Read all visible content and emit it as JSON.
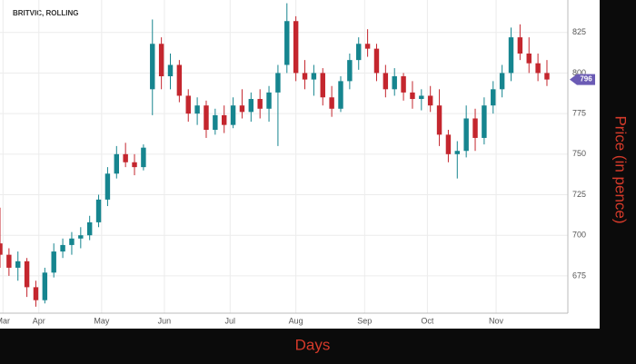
{
  "chart_data": {
    "type": "candlestick",
    "title": "BRITVIC, ROLLING",
    "x_label": "Days",
    "y_label": "Price (in pence)",
    "x": [
      0,
      3,
      6,
      9,
      12,
      15,
      18,
      21,
      24,
      27,
      30,
      33,
      36,
      39,
      42,
      45,
      48,
      51,
      54,
      57,
      60,
      63,
      66,
      69,
      72,
      75,
      78,
      81,
      84,
      87,
      90,
      93,
      96,
      99,
      102,
      105,
      108,
      111,
      114,
      117,
      120,
      123,
      126,
      129,
      132,
      135,
      138,
      141,
      144,
      147,
      150,
      153,
      156,
      159,
      162,
      165,
      168,
      171,
      174,
      177,
      180,
      183
    ],
    "open": [
      695,
      688,
      680,
      684,
      668,
      660,
      677,
      690,
      694,
      698,
      700,
      708,
      722,
      738,
      750,
      745,
      742,
      790,
      818,
      798,
      805,
      786,
      775,
      780,
      765,
      774,
      768,
      780,
      776,
      784,
      778,
      788,
      805,
      832,
      800,
      796,
      800,
      785,
      778,
      795,
      808,
      818,
      815,
      800,
      790,
      798,
      788,
      784,
      786,
      780,
      762,
      750,
      752,
      772,
      760,
      780,
      790,
      800,
      822,
      812,
      806,
      800
    ],
    "high": [
      717,
      692,
      690,
      686,
      672,
      680,
      695,
      698,
      702,
      705,
      712,
      725,
      742,
      755,
      757,
      750,
      756,
      833,
      822,
      812,
      808,
      790,
      785,
      783,
      778,
      780,
      785,
      790,
      788,
      790,
      792,
      805,
      843,
      835,
      808,
      805,
      803,
      792,
      798,
      812,
      822,
      827,
      818,
      805,
      803,
      800,
      795,
      790,
      792,
      790,
      765,
      758,
      780,
      778,
      785,
      795,
      805,
      828,
      830,
      822,
      812,
      808
    ],
    "low": [
      680,
      675,
      672,
      662,
      656,
      658,
      674,
      686,
      688,
      692,
      697,
      705,
      718,
      735,
      742,
      737,
      740,
      774,
      790,
      790,
      782,
      770,
      768,
      760,
      762,
      763,
      766,
      772,
      770,
      772,
      770,
      755,
      800,
      795,
      790,
      786,
      780,
      773,
      776,
      790,
      802,
      810,
      795,
      785,
      786,
      783,
      778,
      777,
      776,
      755,
      745,
      735,
      748,
      752,
      756,
      775,
      785,
      795,
      808,
      800,
      795,
      792
    ],
    "close": [
      688,
      680,
      684,
      668,
      660,
      677,
      690,
      694,
      698,
      700,
      708,
      722,
      738,
      750,
      745,
      742,
      754,
      818,
      798,
      805,
      786,
      775,
      780,
      765,
      774,
      768,
      780,
      776,
      784,
      778,
      788,
      800,
      832,
      800,
      796,
      800,
      785,
      778,
      795,
      808,
      818,
      815,
      800,
      790,
      798,
      788,
      784,
      786,
      780,
      762,
      750,
      752,
      772,
      760,
      780,
      790,
      800,
      822,
      812,
      806,
      800,
      796
    ],
    "up_color": "#16858f",
    "down_color": "#c4262e",
    "last_price_color": "#6b5bb5",
    "xlim": [
      0,
      190
    ],
    "xticks": [
      {
        "value": 1,
        "label": "Mar"
      },
      {
        "value": 13,
        "label": "Apr"
      },
      {
        "value": 34,
        "label": "May"
      },
      {
        "value": 55,
        "label": "Jun"
      },
      {
        "value": 77,
        "label": "Jul"
      },
      {
        "value": 99,
        "label": "Aug"
      },
      {
        "value": 122,
        "label": "Sep"
      },
      {
        "value": 143,
        "label": "Oct"
      },
      {
        "value": 166,
        "label": "Nov"
      }
    ],
    "ylim": [
      652,
      845
    ],
    "yticks": [
      675,
      700,
      725,
      750,
      775,
      800,
      825
    ],
    "grid": true
  }
}
